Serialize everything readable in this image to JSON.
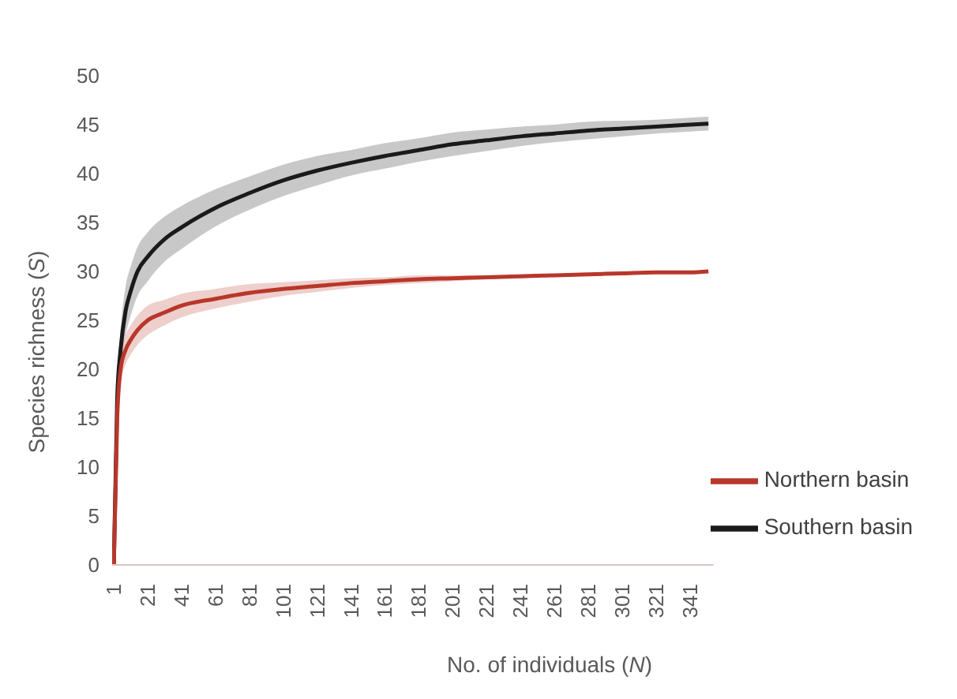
{
  "chart_data": {
    "type": "line",
    "xlabel": "No. of individuals (N)",
    "ylabel": "Species richness (S)",
    "x": [
      1,
      3,
      5,
      8,
      11,
      15,
      21,
      31,
      41,
      61,
      81,
      101,
      121,
      141,
      161,
      181,
      201,
      221,
      241,
      261,
      281,
      301,
      321,
      341,
      352
    ],
    "series": [
      {
        "name": "Southern basin",
        "color": "#1a1a1a",
        "values": [
          0,
          17,
          22,
          26,
          28,
          30,
          31.5,
          33.3,
          34.5,
          36.5,
          38,
          39.3,
          40.3,
          41.1,
          41.8,
          42.4,
          43,
          43.4,
          43.8,
          44.1,
          44.4,
          44.6,
          44.8,
          45,
          45.1
        ],
        "lower": [
          0,
          15.5,
          20,
          23.5,
          25.5,
          27.5,
          29,
          31,
          32.3,
          34.6,
          36.3,
          37.7,
          38.8,
          39.8,
          40.5,
          41.2,
          41.8,
          42.3,
          42.8,
          43.2,
          43.5,
          43.8,
          44.1,
          44.3,
          44.4
        ],
        "upper": [
          0,
          18.5,
          24,
          28.5,
          30.5,
          32.5,
          34,
          35.6,
          36.7,
          38.4,
          39.7,
          40.9,
          41.8,
          42.4,
          43.1,
          43.6,
          44.2,
          44.5,
          44.8,
          45,
          45.3,
          45.4,
          45.5,
          45.7,
          45.8
        ]
      },
      {
        "name": "Northern basin",
        "color": "#b8372a",
        "values": [
          0,
          15,
          20,
          22,
          23,
          24,
          25,
          25.8,
          26.5,
          27.2,
          27.8,
          28.2,
          28.5,
          28.8,
          29,
          29.2,
          29.3,
          29.4,
          29.5,
          29.6,
          29.7,
          29.8,
          29.9,
          29.9,
          30
        ],
        "lower": [
          0,
          13.8,
          18.5,
          20.5,
          21.5,
          22.5,
          23.5,
          24.5,
          25.3,
          26.2,
          26.9,
          27.5,
          27.9,
          28.3,
          28.6,
          28.8,
          29,
          29.2,
          29.3,
          29.5,
          29.6,
          29.7,
          29.8,
          29.9,
          30
        ],
        "upper": [
          0,
          16.2,
          21.5,
          23.5,
          24.5,
          25.5,
          26.5,
          27.1,
          27.7,
          28.2,
          28.7,
          28.9,
          29.1,
          29.3,
          29.4,
          29.6,
          29.6,
          29.6,
          29.7,
          29.7,
          29.8,
          29.9,
          30,
          29.9,
          30
        ]
      }
    ],
    "xlim": [
      0,
      355
    ],
    "xticks": [
      1,
      21,
      41,
      61,
      81,
      101,
      121,
      141,
      161,
      181,
      201,
      221,
      241,
      261,
      281,
      301,
      321,
      341
    ],
    "ylim": [
      0,
      50
    ],
    "yticks": [
      0,
      5,
      10,
      15,
      20,
      25,
      30,
      35,
      40,
      45,
      50
    ],
    "grid": false,
    "legend": "bottom right",
    "marker": "none",
    "line_style": "solid"
  }
}
